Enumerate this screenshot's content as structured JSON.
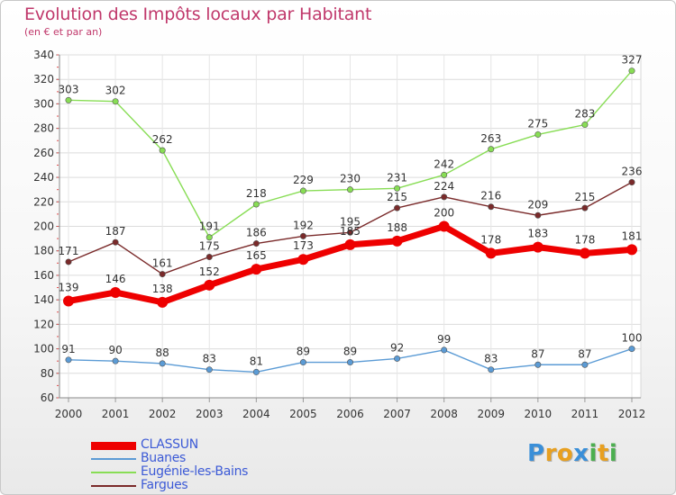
{
  "header": {
    "title": "Evolution des Impôts locaux par Habitant",
    "subtitle": "(en € et par an)"
  },
  "brand": {
    "letters": [
      "P",
      "r",
      "o",
      "x",
      "i",
      "t",
      "i"
    ],
    "colors": [
      "#3a8fd8",
      "#e8a020",
      "#e8a020",
      "#3a8fd8",
      "#4caf50",
      "#e8a020",
      "#4caf50"
    ]
  },
  "chart_data": {
    "type": "line",
    "title": "Evolution des Impôts locaux par Habitant",
    "subtitle": "(en € et par an)",
    "xlabel": "",
    "ylabel": "",
    "x": [
      "2000",
      "2001",
      "2002",
      "2003",
      "2004",
      "2005",
      "2006",
      "2007",
      "2008",
      "2009",
      "2010",
      "2011",
      "2012"
    ],
    "ylim": [
      60,
      340
    ],
    "yticks": [
      60,
      80,
      100,
      120,
      140,
      160,
      180,
      200,
      220,
      240,
      260,
      280,
      300,
      320,
      340
    ],
    "grid": true,
    "legend_position": "bottom-left",
    "series": [
      {
        "name": "CLASSUN",
        "color": "#ee0000",
        "emphasis": true,
        "values": [
          139,
          146,
          138,
          152,
          165,
          173,
          185,
          188,
          200,
          178,
          183,
          178,
          181
        ]
      },
      {
        "name": "Buanes",
        "color": "#5b9bd5",
        "emphasis": false,
        "values": [
          91,
          90,
          88,
          83,
          81,
          89,
          89,
          92,
          99,
          83,
          87,
          87,
          100
        ]
      },
      {
        "name": "Eugénie-les-Bains",
        "color": "#88dd55",
        "emphasis": false,
        "values": [
          303,
          302,
          262,
          191,
          218,
          229,
          230,
          231,
          242,
          263,
          275,
          283,
          327
        ]
      },
      {
        "name": "Fargues",
        "color": "#7a2a2a",
        "emphasis": false,
        "values": [
          171,
          187,
          161,
          175,
          186,
          192,
          195,
          215,
          224,
          216,
          209,
          215,
          236
        ]
      }
    ]
  }
}
